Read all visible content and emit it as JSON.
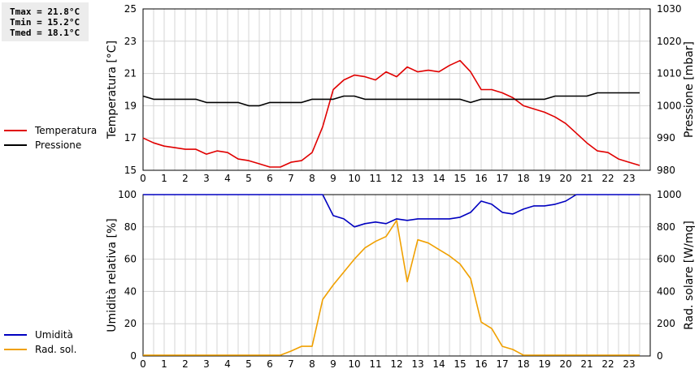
{
  "stats": {
    "tmax": "Tmax = 21.8°C",
    "tmin": "Tmin = 15.2°C",
    "tmed": "Tmed = 18.1°C"
  },
  "chart_data": [
    {
      "type": "line",
      "x_ticks": [
        "0",
        "1",
        "2",
        "3",
        "4",
        "5",
        "6",
        "7",
        "8",
        "9",
        "10",
        "11",
        "12",
        "13",
        "14",
        "15",
        "16",
        "17",
        "18",
        "19",
        "20",
        "21",
        "22",
        "23"
      ],
      "xlim": [
        0,
        24
      ],
      "ylabel_left": "Temperatura [°C]",
      "ylabel_right": "Pressione [mbar]",
      "ylim_left": [
        15,
        25
      ],
      "ylim_right": [
        980,
        1030
      ],
      "yticks_left": [
        "15",
        "17",
        "19",
        "21",
        "23",
        "25"
      ],
      "yticks_right": [
        "980",
        "990",
        "1000",
        "1010",
        "1020",
        "1030"
      ],
      "grid": true,
      "legend_placement": "left",
      "series": [
        {
          "name": "Temperatura",
          "axis": "left",
          "color": "#e00000",
          "x": [
            0,
            0.5,
            1,
            1.5,
            2,
            2.5,
            3,
            3.5,
            4,
            4.5,
            5,
            5.5,
            6,
            6.5,
            7,
            7.5,
            8,
            8.5,
            9,
            9.5,
            10,
            10.5,
            11,
            11.5,
            12,
            12.5,
            13,
            13.5,
            14,
            14.5,
            15,
            15.5,
            16,
            16.5,
            17,
            17.5,
            18,
            18.5,
            19,
            19.5,
            20,
            20.5,
            21,
            21.5,
            22,
            22.5,
            23,
            23.5
          ],
          "y": [
            17.0,
            16.7,
            16.5,
            16.4,
            16.3,
            16.3,
            16.0,
            16.2,
            16.1,
            15.7,
            15.6,
            15.4,
            15.2,
            15.2,
            15.5,
            15.6,
            16.1,
            17.7,
            20.0,
            20.6,
            20.9,
            20.8,
            20.6,
            21.1,
            20.8,
            21.4,
            21.1,
            21.2,
            21.1,
            21.5,
            21.8,
            21.1,
            20.0,
            20.0,
            19.8,
            19.5,
            19.0,
            18.8,
            18.6,
            18.3,
            17.9,
            17.3,
            16.7,
            16.2,
            16.1,
            15.7,
            15.5,
            15.3
          ]
        },
        {
          "name": "Pressione",
          "axis": "right",
          "color": "#000000",
          "x": [
            0,
            0.5,
            1,
            1.5,
            2,
            2.5,
            3,
            3.5,
            4,
            4.5,
            5,
            5.5,
            6,
            6.5,
            7,
            7.5,
            8,
            8.5,
            9,
            9.5,
            10,
            10.5,
            11,
            11.5,
            12,
            12.5,
            13,
            13.5,
            14,
            14.5,
            15,
            15.5,
            16,
            16.5,
            17,
            17.5,
            18,
            18.5,
            19,
            19.5,
            20,
            20.5,
            21,
            21.5,
            22,
            22.5,
            23,
            23.5
          ],
          "y": [
            1003,
            1002,
            1002,
            1002,
            1002,
            1002,
            1001,
            1001,
            1001,
            1001,
            1000,
            1000,
            1001,
            1001,
            1001,
            1001,
            1002,
            1002,
            1002,
            1003,
            1003,
            1002,
            1002,
            1002,
            1002,
            1002,
            1002,
            1002,
            1002,
            1002,
            1002,
            1001,
            1002,
            1002,
            1002,
            1002,
            1002,
            1002,
            1002,
            1003,
            1003,
            1003,
            1003,
            1004,
            1004,
            1004,
            1004,
            1004
          ]
        }
      ]
    },
    {
      "type": "line",
      "x_ticks": [
        "0",
        "1",
        "2",
        "3",
        "4",
        "5",
        "6",
        "7",
        "8",
        "9",
        "10",
        "11",
        "12",
        "13",
        "14",
        "15",
        "16",
        "17",
        "18",
        "19",
        "20",
        "21",
        "22",
        "23"
      ],
      "xlim": [
        0,
        24
      ],
      "ylabel_left": "Umidità relativa [%]",
      "ylabel_right": "Rad. solare [W/mq]",
      "ylim_left": [
        0,
        100
      ],
      "ylim_right": [
        0,
        1000
      ],
      "yticks_left": [
        "0",
        "20",
        "40",
        "60",
        "80",
        "100"
      ],
      "yticks_right": [
        "0",
        "200",
        "400",
        "600",
        "800",
        "1000"
      ],
      "grid": true,
      "legend_placement": "left",
      "series": [
        {
          "name": "Umidità",
          "axis": "left",
          "color": "#0000c0",
          "x": [
            0,
            1,
            2,
            3,
            4,
            5,
            6,
            7,
            8,
            8.5,
            9,
            9.5,
            10,
            10.5,
            11,
            11.5,
            12,
            12.5,
            13,
            13.5,
            14,
            14.5,
            15,
            15.5,
            16,
            16.5,
            17,
            17.5,
            18,
            18.5,
            19,
            19.5,
            20,
            20.5,
            21,
            22,
            23,
            23.5
          ],
          "y": [
            100,
            100,
            100,
            100,
            100,
            100,
            100,
            100,
            100,
            100,
            87,
            85,
            80,
            82,
            83,
            82,
            85,
            84,
            85,
            85,
            85,
            85,
            86,
            89,
            96,
            94,
            89,
            88,
            91,
            93,
            93,
            94,
            96,
            100,
            100,
            100,
            100,
            100
          ]
        },
        {
          "name": "Rad. sol.",
          "axis": "right",
          "color": "#f0a000",
          "x": [
            0,
            1,
            2,
            3,
            4,
            5,
            6,
            6.5,
            7,
            7.5,
            8,
            8.5,
            9,
            9.5,
            10,
            10.5,
            11,
            11.5,
            12,
            12.5,
            13,
            13.5,
            14,
            14.5,
            15,
            15.5,
            16,
            16.5,
            17,
            17.5,
            18,
            19,
            20,
            21,
            22,
            23,
            23.5
          ],
          "y": [
            5,
            5,
            5,
            5,
            5,
            5,
            5,
            5,
            30,
            60,
            60,
            350,
            440,
            520,
            600,
            670,
            710,
            740,
            840,
            460,
            720,
            700,
            660,
            620,
            570,
            480,
            210,
            170,
            60,
            40,
            5,
            5,
            5,
            5,
            5,
            5,
            5
          ]
        }
      ]
    }
  ]
}
